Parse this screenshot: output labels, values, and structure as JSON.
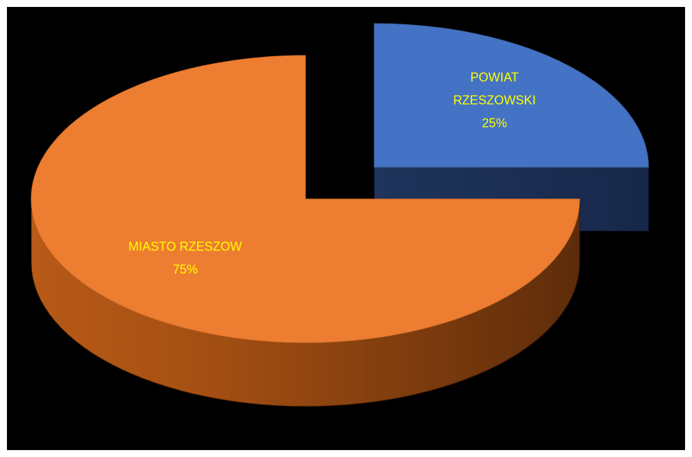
{
  "chart_data": {
    "type": "pie",
    "style": "3d-exploded",
    "title": "",
    "background_color": "#000000",
    "label_color": "#FFFF00",
    "slices": [
      {
        "label_lines": [
          "POWIAT",
          "RZESZOWSKI"
        ],
        "value": 25,
        "value_label": "25%",
        "color": "#4472C4"
      },
      {
        "label_lines": [
          "MIASTO RZESZOW"
        ],
        "value": 75,
        "value_label": "75%",
        "color": "#ED7D31"
      }
    ],
    "legend": "none"
  }
}
